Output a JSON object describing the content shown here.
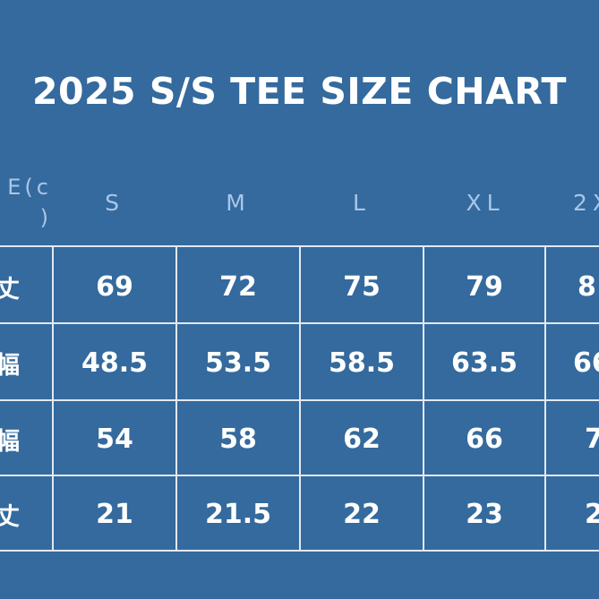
{
  "title": "2025 S/S TEE SIZE CHART",
  "corner_label": "E(c\n)",
  "sizes": [
    "S",
    "M",
    "L",
    "XL",
    "2X"
  ],
  "row_labels": [
    "丈",
    "幅",
    "幅",
    "丈"
  ],
  "rows": [
    [
      "69",
      "72",
      "75",
      "79",
      "8"
    ],
    [
      "48.5",
      "53.5",
      "58.5",
      "63.5",
      "66"
    ],
    [
      "54",
      "58",
      "62",
      "66",
      "7"
    ],
    [
      "21",
      "21.5",
      "22",
      "23",
      "2"
    ]
  ]
}
